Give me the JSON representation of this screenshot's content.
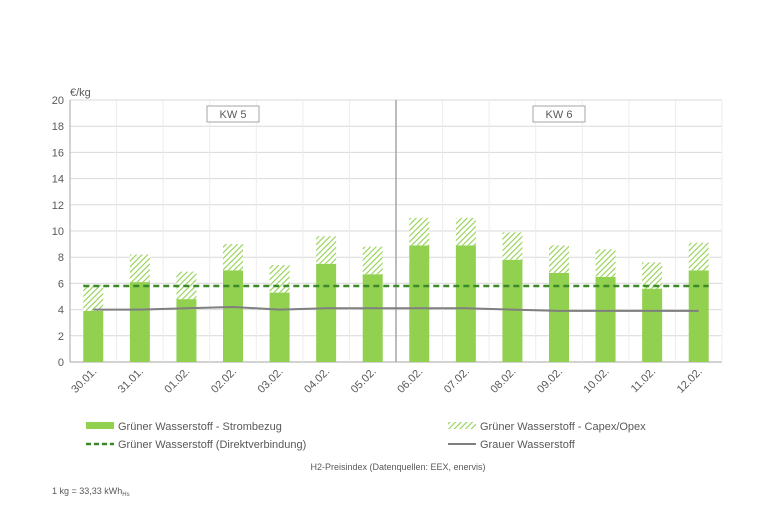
{
  "chart_data": {
    "type": "bar",
    "unit_label": "€/kg",
    "categories": [
      "30.01.",
      "31.01.",
      "01.02.",
      "02.02.",
      "03.02.",
      "04.02.",
      "05.02.",
      "06.02.",
      "07.02.",
      "08.02.",
      "09.02.",
      "10.02.",
      "11.02.",
      "12.02."
    ],
    "ylim": [
      0,
      20
    ],
    "yticks": [
      0,
      2,
      4,
      6,
      8,
      10,
      12,
      14,
      16,
      18,
      20
    ],
    "grid": true,
    "stacked": true,
    "weeks": [
      {
        "label": "KW 5",
        "start_index": 0,
        "end_index": 6
      },
      {
        "label": "KW 6",
        "start_index": 7,
        "end_index": 13
      }
    ],
    "series": [
      {
        "name": "Grüner Wasserstoff - Strombezug",
        "kind": "bar",
        "color": "#92d050",
        "values": [
          3.9,
          6.1,
          4.8,
          7.0,
          5.3,
          7.5,
          6.7,
          8.9,
          8.9,
          7.8,
          6.8,
          6.5,
          5.6,
          7.0
        ]
      },
      {
        "name": "Grüner Wasserstoff - Capex/Opex",
        "kind": "bar-hatched",
        "color": "#92d050",
        "values": [
          2.0,
          2.1,
          2.1,
          2.0,
          2.1,
          2.1,
          2.1,
          2.1,
          2.1,
          2.1,
          2.1,
          2.1,
          2.0,
          2.1
        ]
      },
      {
        "name": "Grüner Wasserstoff (Direktverbindung)",
        "kind": "dashed-line",
        "color": "#3b8a2a",
        "values": [
          5.8,
          5.8,
          5.8,
          5.8,
          5.8,
          5.8,
          5.8,
          5.8,
          5.8,
          5.8,
          5.8,
          5.8,
          5.8,
          5.8
        ]
      },
      {
        "name": "Grauer Wasserstoff",
        "kind": "line",
        "color": "#7f7f7f",
        "values": [
          4.0,
          4.0,
          4.1,
          4.2,
          4.0,
          4.1,
          4.1,
          4.1,
          4.1,
          4.0,
          3.9,
          3.9,
          3.9,
          3.9
        ]
      }
    ],
    "legend_position": "bottom",
    "source": "H2-Preisindex (Datenquellen: EEX, enervis)",
    "footnote_main": "1 kg = 33,33 kWh",
    "footnote_sub": "Hs"
  }
}
